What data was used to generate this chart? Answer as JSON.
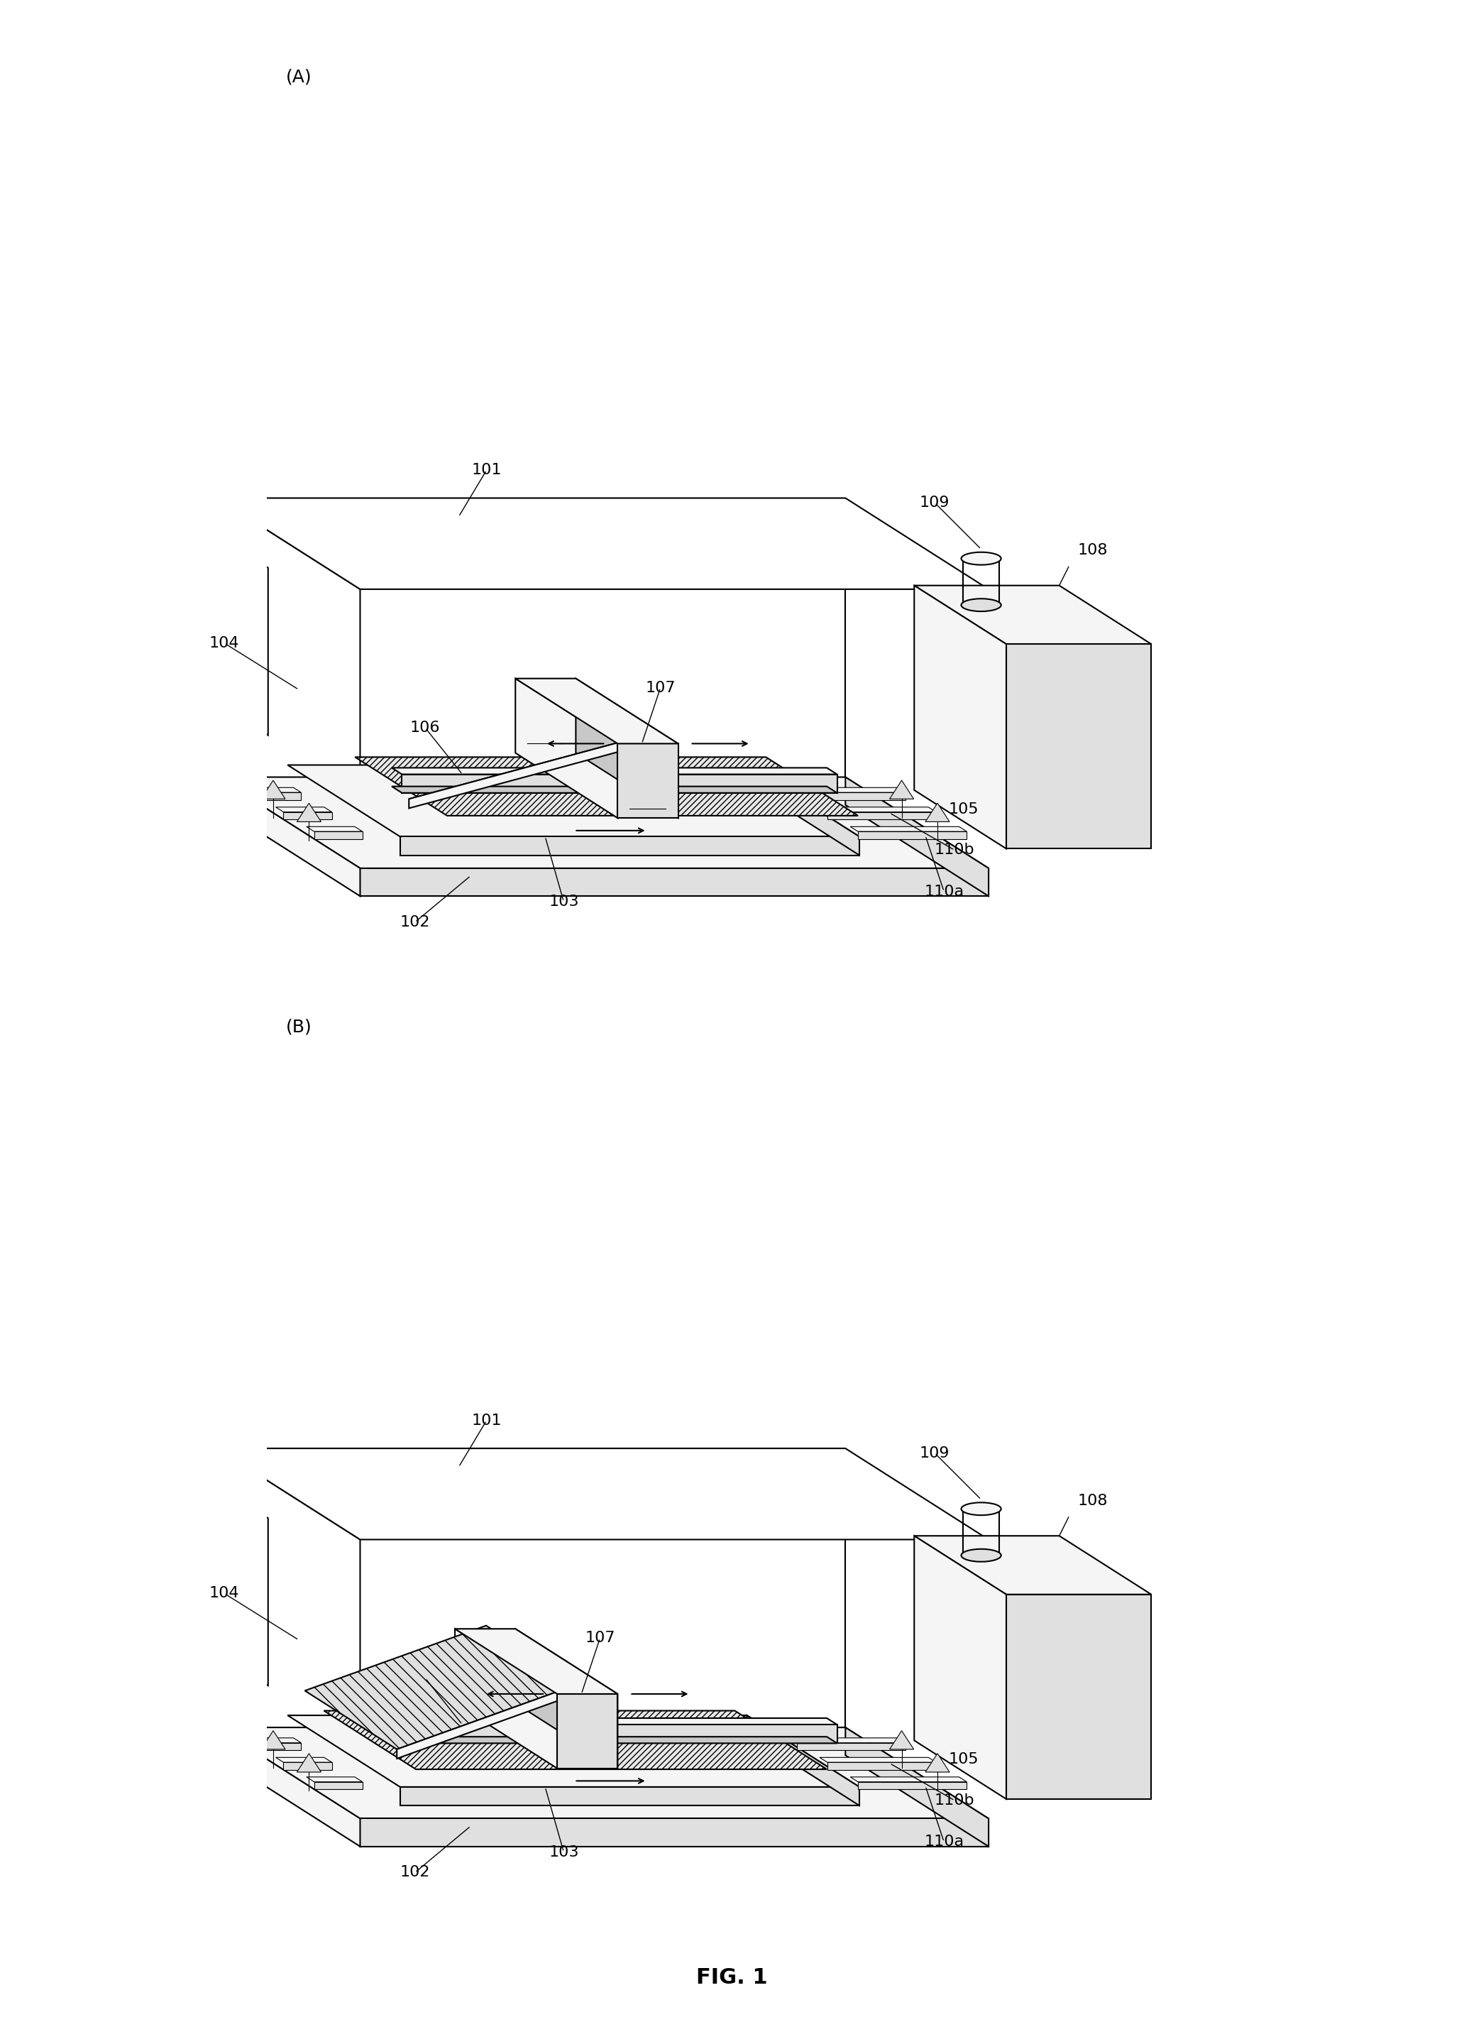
{
  "figure_title": "FIG. 1",
  "bg_color": "#ffffff",
  "line_color": "#000000",
  "label_A": "(A)",
  "label_B": "(B)",
  "font_size_label": 18,
  "font_size_number": 16,
  "font_size_title": 22,
  "lw_main": 1.5,
  "lw_thin": 0.8,
  "fc_light": "#f5f5f5",
  "fc_mid": "#e0e0e0",
  "fc_dark": "#c8c8c8",
  "fc_white": "#ffffff"
}
